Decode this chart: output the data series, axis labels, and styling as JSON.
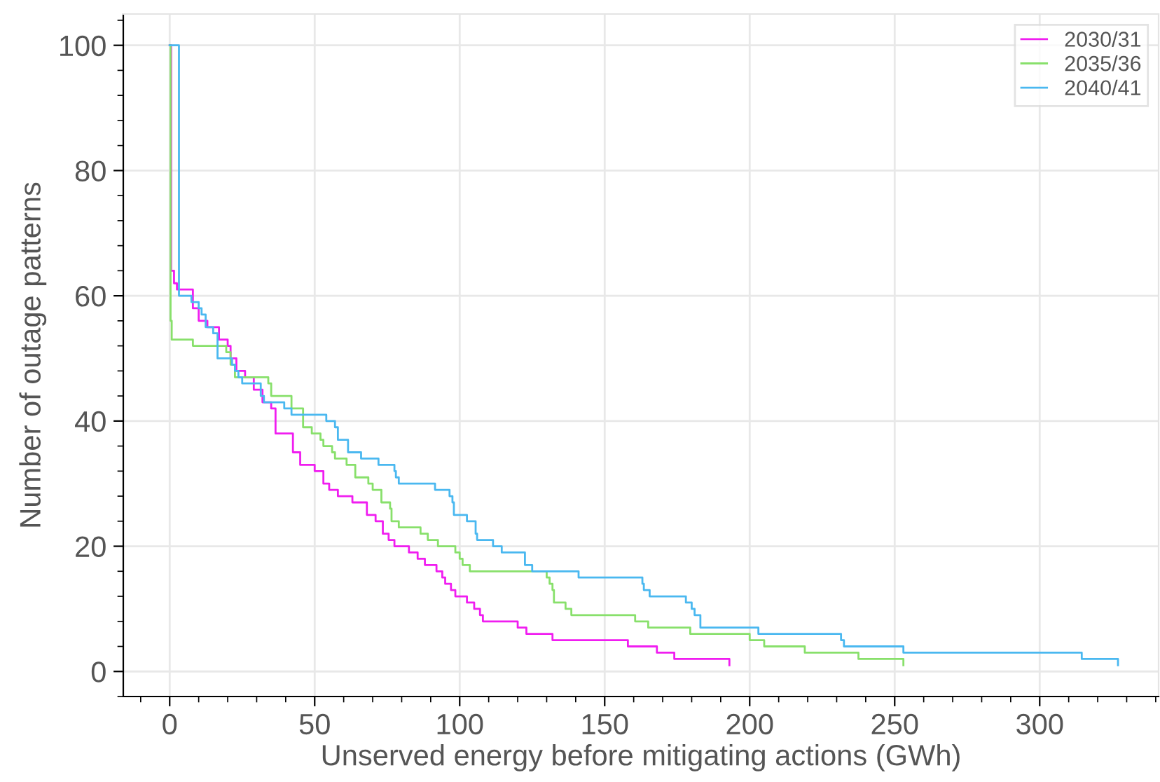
{
  "chart_data": {
    "type": "step",
    "xlabel": "Unserved energy before mitigating actions (GWh)",
    "ylabel": "Number of outage patterns",
    "xlim": [
      -16,
      341
    ],
    "ylim": [
      -4,
      105
    ],
    "xticks": [
      0,
      50,
      100,
      150,
      200,
      250,
      300
    ],
    "yticks": [
      0,
      20,
      40,
      60,
      80,
      100
    ],
    "grid": true,
    "legend": "top right",
    "line_style": "solid",
    "marker": "none",
    "series": [
      {
        "name": "2030/31",
        "color": "#f01df0",
        "x": [
          0,
          0.5,
          1.5,
          2.5,
          8,
          10,
          13,
          17,
          20,
          21,
          23,
          26,
          29,
          32,
          35,
          36.5,
          42.5,
          45,
          50,
          53,
          55,
          58,
          63,
          68,
          71,
          73.5,
          75.5,
          77.5,
          82.5,
          85.5,
          88,
          92,
          94,
          95,
          97,
          98.5,
          102.5,
          105,
          107,
          108,
          120,
          123,
          132,
          158,
          168,
          174,
          193
        ],
        "values": [
          100,
          64,
          62,
          61,
          58,
          56,
          55,
          53,
          52,
          50,
          48,
          47,
          45,
          43,
          42,
          38,
          35,
          33,
          32,
          30,
          29,
          28,
          27,
          25,
          24,
          22,
          21,
          20,
          19,
          18,
          17,
          16,
          15,
          14,
          13,
          12,
          11,
          10,
          9,
          8,
          7,
          6,
          5,
          4,
          3,
          2,
          1
        ]
      },
      {
        "name": "2035/36",
        "color": "#88e06b",
        "x": [
          0,
          0.3,
          0.7,
          8,
          19.5,
          21,
          22.5,
          34,
          35,
          42,
          46,
          49,
          52,
          53,
          56,
          57,
          61,
          64,
          68.5,
          70,
          73,
          76,
          76.5,
          79,
          86.5,
          89,
          92.5,
          98.5,
          100,
          101,
          103.5,
          130,
          131,
          132,
          132.5,
          136.5,
          138.5,
          160.5,
          165,
          179.5,
          200,
          205,
          219,
          237.5,
          253
        ],
        "values": [
          100,
          56,
          53,
          52,
          51,
          49,
          47,
          46,
          44,
          42,
          39,
          38,
          37,
          36,
          35,
          34,
          33,
          31,
          30,
          29,
          27,
          26,
          24,
          23,
          22,
          21,
          20,
          19,
          18,
          17,
          16,
          15,
          14,
          13,
          11,
          10,
          9,
          8,
          7,
          6,
          5,
          4,
          3,
          2,
          1
        ]
      },
      {
        "name": "2040/41",
        "color": "#4ab8f0",
        "x": [
          0,
          3.2,
          7.5,
          10,
          11,
          12.4,
          15,
          16.5,
          21.5,
          22.5,
          23.7,
          25,
          31.4,
          32.5,
          39.5,
          42,
          54,
          57,
          58,
          61.5,
          66,
          72,
          77.5,
          78,
          79,
          91.5,
          96.5,
          97.5,
          98,
          102.5,
          105.5,
          106,
          111.5,
          114.5,
          122.5,
          125,
          141,
          163,
          163.5,
          165.5,
          178,
          180,
          181,
          183,
          203,
          231.5,
          232.5,
          253,
          314.5,
          327
        ],
        "values": [
          100,
          60,
          59,
          58,
          57,
          55,
          54,
          50,
          49,
          48,
          47,
          46,
          44,
          43,
          42,
          41,
          40,
          39,
          37,
          35,
          34,
          33,
          32,
          31,
          30,
          29,
          28,
          27,
          25,
          24,
          22,
          21,
          20,
          19,
          17,
          16,
          15,
          14,
          13,
          12,
          11,
          10,
          9,
          7,
          6,
          5,
          4,
          3,
          2,
          1
        ]
      }
    ]
  }
}
